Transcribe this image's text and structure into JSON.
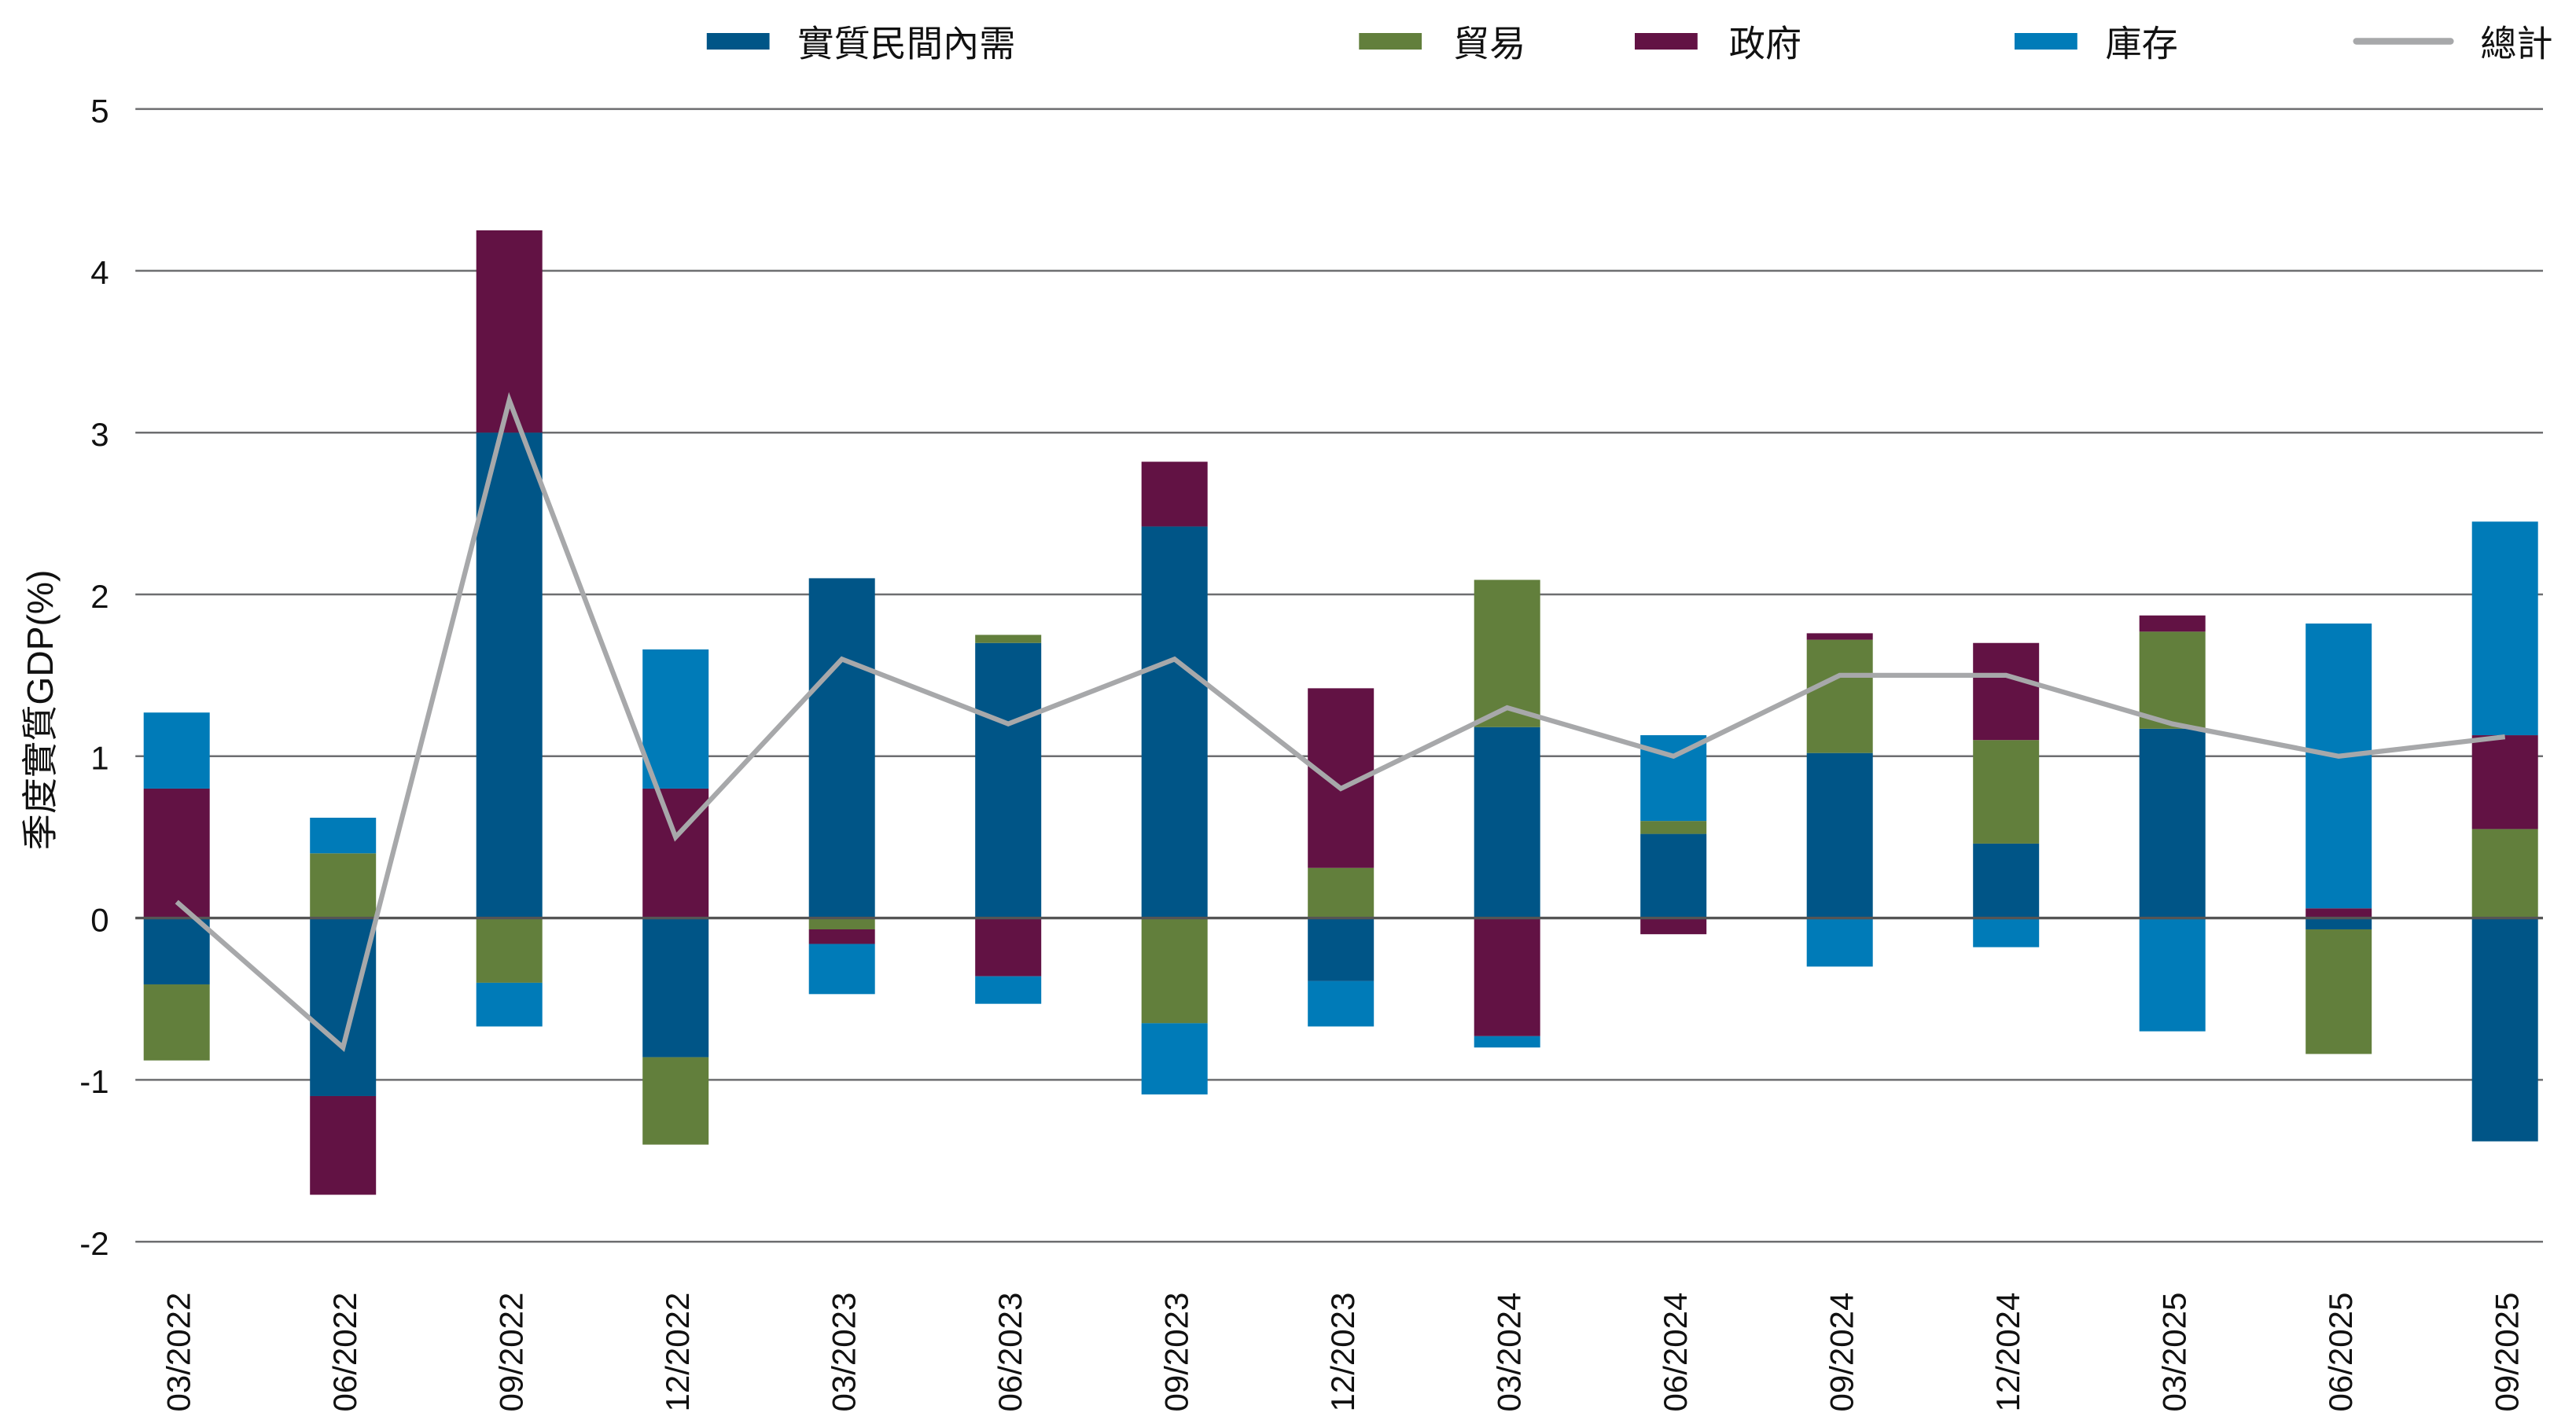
{
  "chart_data": {
    "type": "bar",
    "stacked": true,
    "categories": [
      "03/2022",
      "06/2022",
      "09/2022",
      "12/2022",
      "03/2023",
      "06/2023",
      "09/2023",
      "12/2023",
      "03/2024",
      "06/2024",
      "09/2024",
      "12/2024",
      "03/2025",
      "06/2025",
      "09/2025"
    ],
    "series": [
      {
        "name": "實質民間內需",
        "kind": "bar",
        "color": "#005587",
        "values": [
          -0.41,
          -1.1,
          3.0,
          -0.86,
          2.1,
          1.7,
          2.42,
          -0.39,
          1.18,
          0.52,
          1.02,
          0.46,
          1.17,
          -0.07,
          -1.38
        ]
      },
      {
        "name": "貿易",
        "kind": "bar",
        "color": "#627f3c",
        "values": [
          -0.47,
          0.4,
          -0.4,
          -0.54,
          -0.07,
          0.05,
          -0.65,
          0.31,
          0.91,
          0.08,
          0.7,
          0.64,
          0.6,
          -0.77,
          0.55
        ]
      },
      {
        "name": "政府",
        "kind": "bar",
        "color": "#621244",
        "values": [
          0.8,
          -0.61,
          1.25,
          0.8,
          -0.09,
          -0.36,
          0.4,
          1.11,
          -0.73,
          -0.1,
          0.04,
          0.6,
          0.1,
          0.06,
          0.58
        ]
      },
      {
        "name": "庫存",
        "kind": "bar",
        "color": "#007bb8",
        "values": [
          0.47,
          0.22,
          -0.27,
          0.86,
          -0.31,
          -0.17,
          -0.44,
          -0.28,
          -0.07,
          0.53,
          -0.3,
          -0.18,
          -0.7,
          1.76,
          1.32
        ]
      },
      {
        "name": "總計",
        "kind": "line",
        "color": "#a7a8aa",
        "values": [
          0.1,
          -0.8,
          3.2,
          0.5,
          1.6,
          1.2,
          1.6,
          0.8,
          1.3,
          1.0,
          1.5,
          1.5,
          1.2,
          1.0,
          1.12
        ]
      }
    ],
    "ylabel": "季度實質GDP(%)",
    "xlabel": "",
    "ylim": [
      -2,
      5
    ],
    "yticks": [
      "-2",
      "-1",
      "0",
      "1",
      "2",
      "3",
      "4",
      "5"
    ],
    "grid": true,
    "legend": "top"
  }
}
